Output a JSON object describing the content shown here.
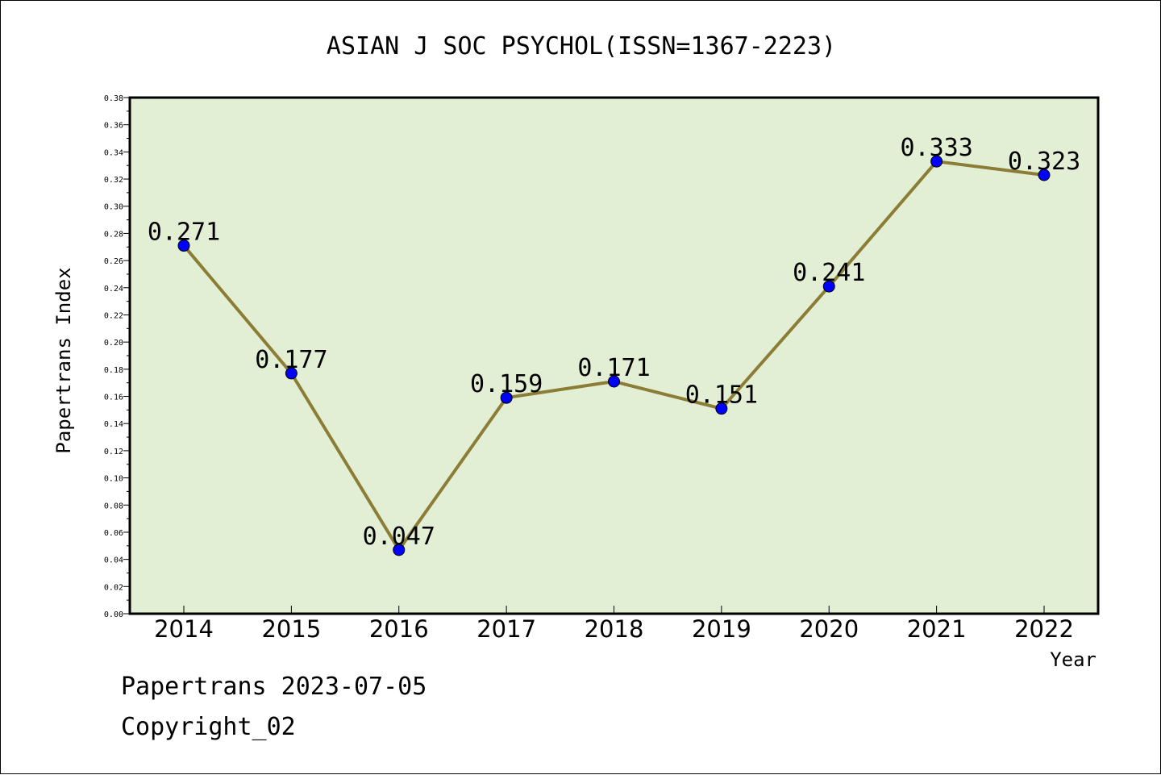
{
  "chart_data": {
    "type": "line",
    "title": "ASIAN J SOC PSYCHOL(ISSN=1367-2223)",
    "xlabel": "Year",
    "ylabel": "Papertrans Index",
    "categories": [
      "2014",
      "2015",
      "2016",
      "2017",
      "2018",
      "2019",
      "2020",
      "2021",
      "2022"
    ],
    "series": [
      {
        "values": [
          0.271,
          0.177,
          0.047,
          0.159,
          0.171,
          0.151,
          0.241,
          0.333,
          0.323
        ],
        "labels": [
          "0.271",
          "0.177",
          "0.047",
          "0.159",
          "0.171",
          "0.151",
          "0.241",
          "0.333",
          "0.323"
        ]
      }
    ],
    "ylim": [
      0,
      0.38
    ],
    "yticks": [
      "0.00",
      "0.02",
      "0.04",
      "0.06",
      "0.08",
      "0.10",
      "0.12",
      "0.14",
      "0.16",
      "0.18",
      "0.20",
      "0.22",
      "0.24",
      "0.26",
      "0.28",
      "0.30",
      "0.32",
      "0.34",
      "0.36",
      "0.38"
    ],
    "grid": false,
    "colors": {
      "plot_background": "#e2efd5",
      "line": "#8b7d36",
      "marker": "#0000ff"
    }
  },
  "footer": {
    "date": "Papertrans 2023-07-05",
    "copyright": "Copyright_02"
  }
}
